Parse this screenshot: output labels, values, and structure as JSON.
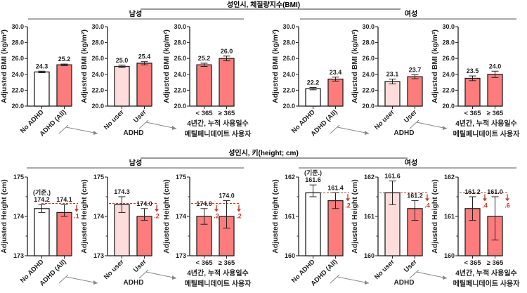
{
  "headers": {
    "bmi_title": "성인시, 체질량지수(BMI)",
    "height_title": "성인시, 키(height; cm)",
    "male": "남성",
    "female": "여성"
  },
  "colors": {
    "no_adhd": "#ffffff",
    "no_user": "#ffdcdc",
    "adhd": "#ff7c7c",
    "reference": "#c0392b",
    "bar_border": "#222222"
  },
  "chart_data": [
    {
      "type": "bar",
      "section": "bmi",
      "sex": "male",
      "ylabel": "Adjusted BMI (kg/m²)",
      "ylim": [
        20,
        30
      ],
      "yticks": [
        "20.0",
        "22.0",
        "24.0",
        "26.0",
        "28.0",
        "30.0"
      ],
      "categories": [
        "No ADHD",
        "ADHD (All)"
      ],
      "values": [
        24.3,
        25.2
      ],
      "err_low": [
        24.2,
        25.1
      ],
      "err_high": [
        24.4,
        25.3
      ],
      "value_labels": [
        "24.3",
        "25.2"
      ],
      "fills": [
        "no_adhd",
        "adhd"
      ],
      "label_style": "rotated"
    },
    {
      "type": "bar",
      "section": "bmi",
      "sex": "male",
      "ylabel": "Adjusted BMI (kg/m²)",
      "ylim": [
        20,
        30
      ],
      "yticks": [
        "20.0",
        "22.0",
        "24.0",
        "26.0",
        "28.0",
        "30.0"
      ],
      "categories": [
        "No user",
        "User"
      ],
      "values": [
        25.0,
        25.4
      ],
      "err_low": [
        24.85,
        25.2
      ],
      "err_high": [
        25.15,
        25.6
      ],
      "value_labels": [
        "25.0",
        "25.4"
      ],
      "fills": [
        "no_user",
        "adhd"
      ],
      "label_style": "rotated",
      "caption": [
        "ADHD"
      ]
    },
    {
      "type": "bar",
      "section": "bmi",
      "sex": "male",
      "ylabel": "Adjusted BMI (kg/m²)",
      "ylim": [
        20,
        30
      ],
      "yticks": [
        "20.0",
        "22.0",
        "24.0",
        "26.0",
        "28.0",
        "30.0"
      ],
      "categories": [
        "< 365",
        "≥ 365"
      ],
      "values": [
        25.2,
        26.0
      ],
      "err_low": [
        25.0,
        25.7
      ],
      "err_high": [
        25.4,
        26.3
      ],
      "value_labels": [
        "25.2",
        "26.0"
      ],
      "fills": [
        "adhd",
        "adhd"
      ],
      "label_style": "flat",
      "caption": [
        "4년간, 누적 사용일수",
        "메틸페니데이트 사용자"
      ]
    },
    {
      "type": "bar",
      "section": "bmi",
      "sex": "female",
      "ylabel": "Adjusted BMI (kg/m²)",
      "ylim": [
        20,
        30
      ],
      "yticks": [
        "20.0",
        "22.0",
        "24.0",
        "26.0",
        "28.0",
        "30.0"
      ],
      "categories": [
        "No ADHD",
        "ADHD (All)"
      ],
      "values": [
        22.2,
        23.4
      ],
      "err_low": [
        22.05,
        23.15
      ],
      "err_high": [
        22.35,
        23.65
      ],
      "value_labels": [
        "22.2",
        "23.4"
      ],
      "fills": [
        "no_adhd",
        "adhd"
      ],
      "label_style": "rotated"
    },
    {
      "type": "bar",
      "section": "bmi",
      "sex": "female",
      "ylabel": "Adjusted BMI (kg/m²)",
      "ylim": [
        20,
        30
      ],
      "yticks": [
        "20.0",
        "22.0",
        "24.0",
        "26.0",
        "28.0",
        "30.0"
      ],
      "categories": [
        "No user",
        "User"
      ],
      "values": [
        23.1,
        23.7
      ],
      "err_low": [
        22.8,
        23.45
      ],
      "err_high": [
        23.4,
        23.95
      ],
      "value_labels": [
        "23.1",
        "23.7"
      ],
      "fills": [
        "no_user",
        "adhd"
      ],
      "label_style": "rotated",
      "caption": [
        "ADHD"
      ]
    },
    {
      "type": "bar",
      "section": "bmi",
      "sex": "female",
      "ylabel": "Adjusted BMI (kg/m²)",
      "ylim": [
        20,
        30
      ],
      "yticks": [
        "20.0",
        "22.0",
        "24.0",
        "26.0",
        "28.0",
        "30.0"
      ],
      "categories": [
        "< 365",
        "≥ 365"
      ],
      "values": [
        23.5,
        24.0
      ],
      "err_low": [
        23.2,
        23.6
      ],
      "err_high": [
        23.8,
        24.4
      ],
      "value_labels": [
        "23.5",
        "24.0"
      ],
      "fills": [
        "adhd",
        "adhd"
      ],
      "label_style": "flat",
      "caption": [
        "4년간, 누적 사용일수",
        "메틸페니데이트 사용자"
      ]
    },
    {
      "type": "bar",
      "section": "height",
      "sex": "male",
      "ylabel": "Adjusted Height (cm)",
      "ylim": [
        173,
        175
      ],
      "yticks": [
        "173",
        "174",
        "175"
      ],
      "categories": [
        "No ADHD",
        "ADHD (All)"
      ],
      "values": [
        174.2,
        174.1
      ],
      "err_low": [
        174.1,
        174.0
      ],
      "err_high": [
        174.3,
        174.3
      ],
      "value_labels": [
        "174.2",
        "174.1"
      ],
      "fills": [
        "no_adhd",
        "adhd"
      ],
      "label_style": "rotated",
      "reference_line": 174.33,
      "reference_note": "(기준.)",
      "differences": [
        "",
        ".1"
      ]
    },
    {
      "type": "bar",
      "section": "height",
      "sex": "male",
      "ylabel": "Adjusted Height (cm)",
      "ylim": [
        173,
        175
      ],
      "yticks": [
        "173",
        "174",
        "175"
      ],
      "categories": [
        "No user",
        "User"
      ],
      "values": [
        174.3,
        174.0
      ],
      "err_low": [
        174.1,
        173.9
      ],
      "err_high": [
        174.5,
        174.2
      ],
      "value_labels": [
        "174.3",
        "174.0"
      ],
      "fills": [
        "no_user",
        "adhd"
      ],
      "label_style": "rotated",
      "caption": [
        "ADHD"
      ],
      "reference_line": 174.33,
      "differences": [
        "",
        ".2"
      ]
    },
    {
      "type": "bar",
      "section": "height",
      "sex": "male",
      "ylabel": "Adjusted Height (cm)",
      "ylim": [
        173,
        175
      ],
      "yticks": [
        "173",
        "174",
        "175"
      ],
      "categories": [
        "< 365",
        "≥ 365"
      ],
      "values": [
        174.0,
        174.0
      ],
      "err_low": [
        173.8,
        173.7
      ],
      "err_high": [
        174.2,
        174.4
      ],
      "value_labels": [
        "174.0",
        "174.0"
      ],
      "fills": [
        "adhd",
        "adhd"
      ],
      "label_style": "flat",
      "caption": [
        "4년간, 누적 사용일수",
        "메틸페니데이트 사용자"
      ],
      "reference_line": 174.33,
      "differences": [
        ".2",
        ".2"
      ]
    },
    {
      "type": "bar",
      "section": "height",
      "sex": "female",
      "ylabel": "Adjusted Height (cm)",
      "ylim": [
        160,
        162
      ],
      "yticks": [
        "160",
        "161",
        "162"
      ],
      "categories": [
        "No ADHD",
        "ADHD (All)"
      ],
      "values": [
        161.6,
        161.4
      ],
      "err_low": [
        161.5,
        161.2
      ],
      "err_high": [
        161.8,
        161.6
      ],
      "value_labels": [
        "161.6",
        "161.4"
      ],
      "fills": [
        "no_adhd",
        "adhd"
      ],
      "label_style": "rotated",
      "reference_line": 161.6,
      "reference_note": "(기준.)",
      "differences": [
        "",
        ".2"
      ]
    },
    {
      "type": "bar",
      "section": "height",
      "sex": "female",
      "ylabel": "Adjusted Height (cm)",
      "ylim": [
        160,
        162
      ],
      "yticks": [
        "160",
        "161",
        "162"
      ],
      "categories": [
        "No user",
        "User"
      ],
      "values": [
        161.6,
        161.2
      ],
      "err_low": [
        161.3,
        160.9
      ],
      "err_high": [
        161.9,
        161.4
      ],
      "value_labels": [
        "161.6",
        "161.2"
      ],
      "fills": [
        "no_user",
        "adhd"
      ],
      "label_style": "rotated",
      "caption": [
        "ADHD"
      ],
      "reference_line": 161.6,
      "differences": [
        "",
        ".4"
      ]
    },
    {
      "type": "bar",
      "section": "height",
      "sex": "female",
      "ylabel": "Adjusted Height (cm)",
      "ylim": [
        160,
        162
      ],
      "yticks": [
        "160",
        "161",
        "162"
      ],
      "categories": [
        "< 365",
        "≥ 365"
      ],
      "values": [
        161.2,
        161.0
      ],
      "err_low": [
        160.9,
        160.4
      ],
      "err_high": [
        161.5,
        161.5
      ],
      "value_labels": [
        "161.2",
        "161.0"
      ],
      "fills": [
        "adhd",
        "adhd"
      ],
      "label_style": "flat",
      "caption": [
        "4년간, 누적 사용일수",
        "메틸페니데이트 사용자"
      ],
      "reference_line": 161.6,
      "differences": [
        ".4",
        ".6"
      ]
    }
  ]
}
